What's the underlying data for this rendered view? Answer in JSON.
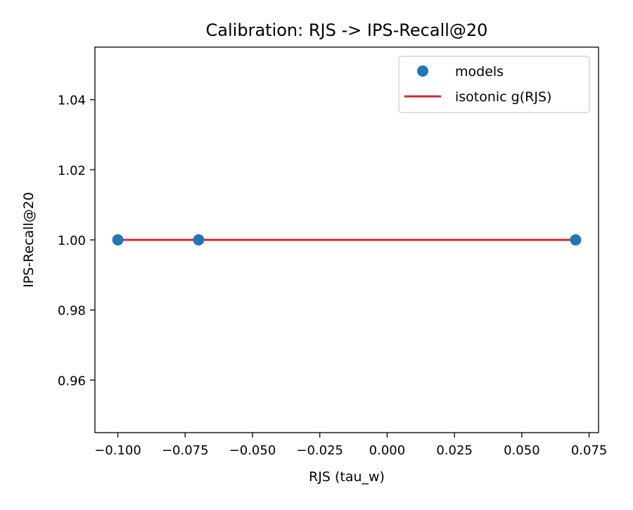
{
  "chart_data": {
    "type": "scatter",
    "title": "Calibration: RJS -> IPS-Recall@20",
    "xlabel": "RJS (tau_w)",
    "ylabel": "IPS-Recall@20",
    "xlim": [
      -0.1085,
      0.0785
    ],
    "ylim": [
      0.945,
      1.055
    ],
    "xticks": [
      -0.1,
      -0.075,
      -0.05,
      -0.025,
      0.0,
      0.025,
      0.05,
      0.075
    ],
    "xtick_labels": [
      "−0.100",
      "−0.075",
      "−0.050",
      "−0.025",
      "0.000",
      "0.025",
      "0.050",
      "0.075"
    ],
    "yticks": [
      0.96,
      0.98,
      1.0,
      1.02,
      1.04
    ],
    "ytick_labels": [
      "0.96",
      "0.98",
      "1.00",
      "1.02",
      "1.04"
    ],
    "grid": false,
    "legend_position": "top-right",
    "series": [
      {
        "name": "models",
        "kind": "scatter",
        "color": "#1f77b4",
        "x": [
          -0.1,
          -0.07,
          0.07
        ],
        "y": [
          1.0,
          1.0,
          1.0
        ]
      },
      {
        "name": "isotonic g(RJS)",
        "kind": "line",
        "color": "#d62728",
        "x": [
          -0.1,
          0.07
        ],
        "y": [
          1.0,
          1.0
        ]
      }
    ]
  }
}
